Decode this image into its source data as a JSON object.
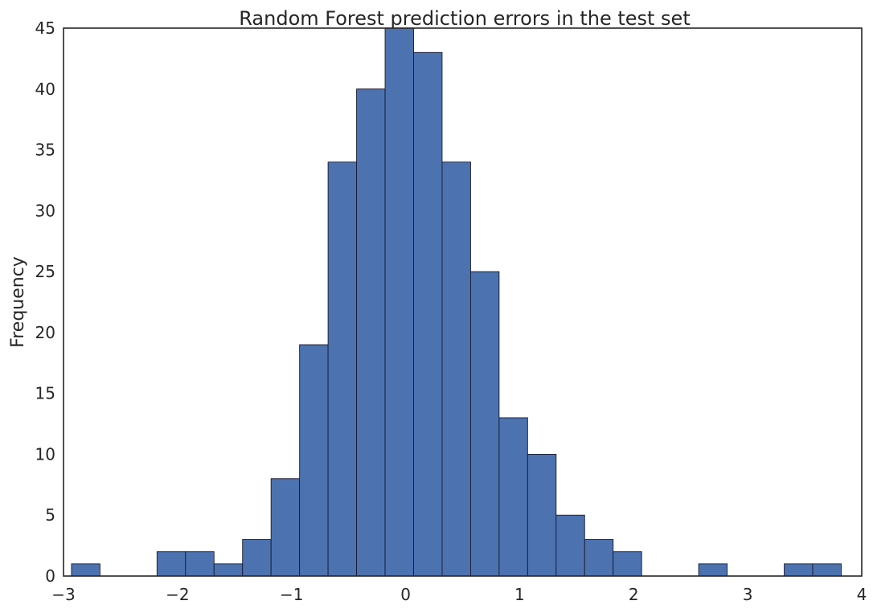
{
  "chart_data": {
    "type": "bar",
    "subtype": "histogram",
    "title": "Random Forest prediction errors in the test set",
    "xlabel": "",
    "ylabel": "Frequency",
    "xlim": [
      -3,
      4
    ],
    "ylim": [
      0,
      45
    ],
    "x_ticks": [
      "−3",
      "−2",
      "−1",
      "0",
      "1",
      "2",
      "3",
      "4"
    ],
    "y_ticks": [
      "0",
      "5",
      "10",
      "15",
      "20",
      "25",
      "30",
      "35",
      "40",
      "45"
    ],
    "grid": false,
    "legend": "none",
    "bar_color": "#4c72b0",
    "edge_color": "#1a1a2e",
    "bins": [
      {
        "x0": -2.93,
        "x1": -2.68,
        "count": 1
      },
      {
        "x0": -2.68,
        "x1": -2.43,
        "count": 0
      },
      {
        "x0": -2.43,
        "x1": -2.18,
        "count": 0
      },
      {
        "x0": -2.18,
        "x1": -1.93,
        "count": 2
      },
      {
        "x0": -1.93,
        "x1": -1.68,
        "count": 2
      },
      {
        "x0": -1.68,
        "x1": -1.43,
        "count": 1
      },
      {
        "x0": -1.43,
        "x1": -1.18,
        "count": 3
      },
      {
        "x0": -1.18,
        "x1": -0.93,
        "count": 8
      },
      {
        "x0": -0.93,
        "x1": -0.68,
        "count": 19
      },
      {
        "x0": -0.68,
        "x1": -0.43,
        "count": 34
      },
      {
        "x0": -0.43,
        "x1": -0.18,
        "count": 40
      },
      {
        "x0": -0.18,
        "x1": 0.07,
        "count": 45
      },
      {
        "x0": 0.07,
        "x1": 0.32,
        "count": 43
      },
      {
        "x0": 0.32,
        "x1": 0.57,
        "count": 34
      },
      {
        "x0": 0.57,
        "x1": 0.82,
        "count": 25
      },
      {
        "x0": 0.82,
        "x1": 1.07,
        "count": 13
      },
      {
        "x0": 1.07,
        "x1": 1.32,
        "count": 10
      },
      {
        "x0": 1.32,
        "x1": 1.57,
        "count": 5
      },
      {
        "x0": 1.57,
        "x1": 1.82,
        "count": 3
      },
      {
        "x0": 1.82,
        "x1": 2.07,
        "count": 2
      },
      {
        "x0": 2.07,
        "x1": 2.32,
        "count": 0
      },
      {
        "x0": 2.32,
        "x1": 2.57,
        "count": 0
      },
      {
        "x0": 2.57,
        "x1": 2.82,
        "count": 1
      },
      {
        "x0": 2.82,
        "x1": 3.07,
        "count": 0
      },
      {
        "x0": 3.07,
        "x1": 3.32,
        "count": 0
      },
      {
        "x0": 3.32,
        "x1": 3.57,
        "count": 1
      },
      {
        "x0": 3.57,
        "x1": 3.82,
        "count": 1
      }
    ]
  }
}
